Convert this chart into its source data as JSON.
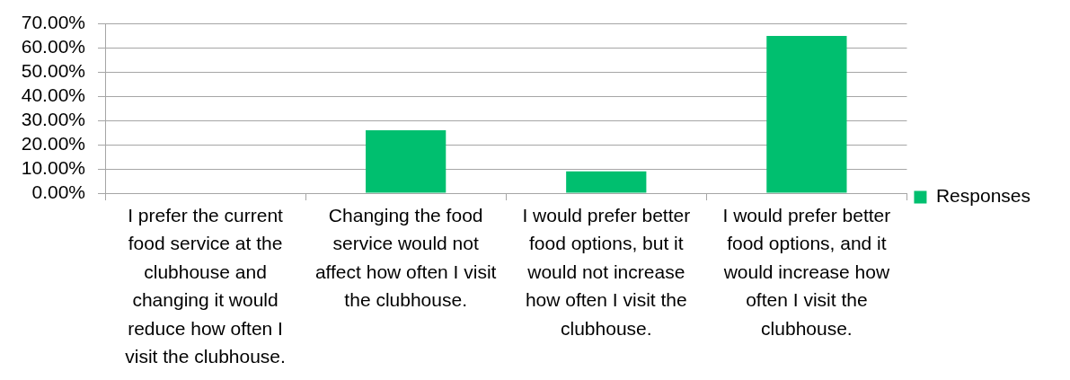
{
  "chart_data": {
    "type": "bar",
    "categories": [
      "I prefer the current food service at the clubhouse and changing it would reduce how often I visit the clubhouse.",
      "Changing the food service would not affect how often I visit the clubhouse.",
      "I would prefer better food options, but it would not increase how often I visit the clubhouse.",
      "I would prefer better food options, and it would increase how often I visit the clubhouse."
    ],
    "series": [
      {
        "name": "Responses",
        "color": "#00bf6f",
        "values": [
          0,
          26,
          9,
          65
        ]
      }
    ],
    "ylim": [
      0,
      70
    ],
    "yticks": [
      {
        "value": 0,
        "label": "0.00%"
      },
      {
        "value": 10,
        "label": "10.00%"
      },
      {
        "value": 20,
        "label": "20.00%"
      },
      {
        "value": 30,
        "label": "30.00%"
      },
      {
        "value": 40,
        "label": "40.00%"
      },
      {
        "value": 50,
        "label": "50.00%"
      },
      {
        "value": 60,
        "label": "60.00%"
      },
      {
        "value": 70,
        "label": "70.00%"
      }
    ],
    "grid": "y",
    "legend": "right"
  }
}
